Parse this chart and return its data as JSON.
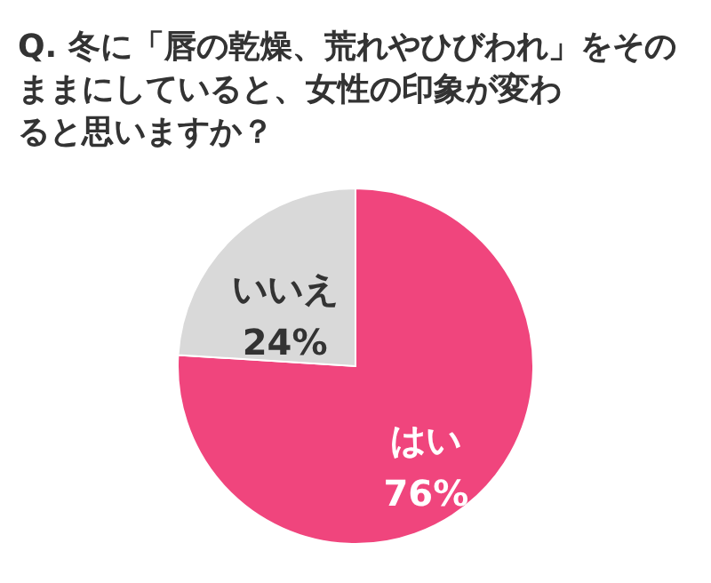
{
  "chart_data": {
    "type": "pie",
    "title": "Q. 冬に「唇の乾燥、荒れやひびわれ」をそのままにしていると、女性の印象が変わると思いますか？",
    "categories": [
      "はい",
      "いいえ"
    ],
    "values": [
      76,
      24
    ],
    "colors": [
      "#f0457d",
      "#d9d9d9"
    ],
    "value_labels": [
      "76%",
      "24%"
    ]
  }
}
